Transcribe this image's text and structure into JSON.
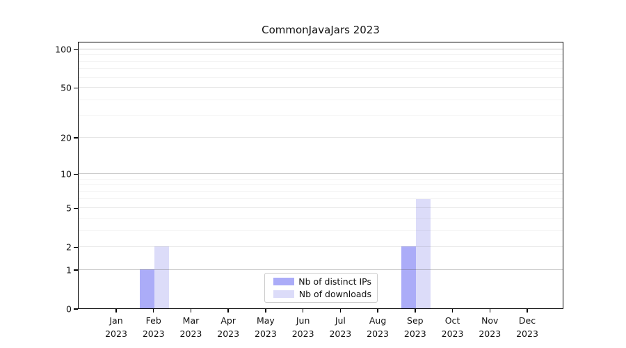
{
  "title": "CommonJavaJars 2023",
  "legend": {
    "items": [
      {
        "label": "Nb of distinct IPs",
        "color": "#abacf8"
      },
      {
        "label": "Nb of downloads",
        "color": "#dcdcf9"
      }
    ]
  },
  "colors": {
    "bar_distinct_ips": "#abacf8",
    "bar_downloads": "#dcdcf9",
    "grid_decade": "rgba(80,80,80,0.32)",
    "grid_major": "rgba(80,80,80,0.14)",
    "grid_minor": "rgba(80,80,80,0.07)",
    "axis": "#000000",
    "text": "#111111"
  },
  "chart_data": {
    "type": "bar",
    "title": "CommonJavaJars 2023",
    "categories": [
      "Jan",
      "Feb",
      "Mar",
      "Apr",
      "May",
      "Jun",
      "Jul",
      "Aug",
      "Sep",
      "Oct",
      "Nov",
      "Dec"
    ],
    "category_year": "2023",
    "series": [
      {
        "name": "Nb of distinct IPs",
        "color": "#abacf8",
        "values": [
          0,
          1,
          0,
          0,
          0,
          0,
          0,
          0,
          2,
          0,
          0,
          0
        ]
      },
      {
        "name": "Nb of downloads",
        "color": "#dcdcf9",
        "values": [
          0,
          2,
          0,
          0,
          0,
          0,
          0,
          0,
          6,
          0,
          0,
          0
        ]
      }
    ],
    "xlabel": "",
    "ylabel": "",
    "yscale": "log1p",
    "y_major_ticks": [
      0,
      1,
      2,
      5,
      10,
      20,
      50,
      100
    ],
    "y_minor_ticks": [
      3,
      4,
      6,
      7,
      8,
      9,
      30,
      40,
      60,
      70,
      80,
      90
    ],
    "y_decade_ticks": [
      1,
      10,
      100
    ],
    "ylim": [
      0,
      115
    ],
    "grid": "on",
    "legend_position": "lower center"
  }
}
